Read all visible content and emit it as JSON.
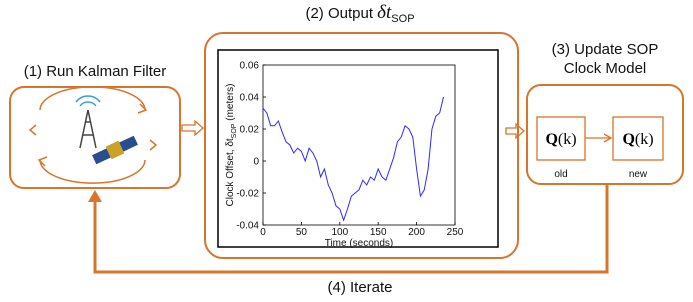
{
  "step1": {
    "label": "(1) Run Kalman Filter"
  },
  "step2": {
    "label": "(2) Output",
    "symbol": "δt",
    "subscript": "SOP"
  },
  "step3": {
    "label_lines": [
      "(3) Update SOP",
      "Clock Model"
    ],
    "boxes": [
      {
        "symbol": "Q",
        "argument": "(k)",
        "caption": "old"
      },
      {
        "symbol": "Q",
        "argument": "(k)",
        "caption": "new"
      }
    ]
  },
  "step4": {
    "label": "(4) Iterate"
  },
  "chart_data": {
    "type": "line",
    "xlabel": "Time (seconds)",
    "ylabel": "Clock Offset, δt",
    "ylabel_subscript": "SOP",
    "ylabel_unit": "(meters)",
    "x": [
      0,
      5,
      10,
      15,
      20,
      25,
      30,
      35,
      40,
      45,
      50,
      55,
      60,
      65,
      70,
      75,
      80,
      85,
      90,
      95,
      100,
      105,
      110,
      115,
      120,
      125,
      130,
      135,
      140,
      145,
      150,
      155,
      160,
      165,
      170,
      175,
      180,
      185,
      190,
      195,
      200,
      205,
      210,
      215,
      220,
      225,
      230,
      235
    ],
    "series": [
      {
        "color": "#2b2bff",
        "values": [
          0.033,
          0.03,
          0.022,
          0.022,
          0.025,
          0.018,
          0.012,
          0.01,
          0.005,
          0.008,
          0.006,
          0.0,
          0.008,
          0.005,
          0.0,
          -0.01,
          -0.005,
          -0.015,
          -0.02,
          -0.028,
          -0.03,
          -0.037,
          -0.03,
          -0.022,
          -0.02,
          -0.018,
          -0.012,
          -0.015,
          -0.01,
          -0.012,
          -0.005,
          -0.01,
          -0.012,
          -0.005,
          0.002,
          0.012,
          0.015,
          0.022,
          0.02,
          0.015,
          -0.005,
          -0.022,
          -0.018,
          -0.005,
          0.02,
          0.028,
          0.03,
          0.04
        ]
      }
    ],
    "xlim": [
      0,
      250
    ],
    "xticks": [
      0,
      50,
      100,
      150,
      200,
      250
    ],
    "ylim": [
      -0.04,
      0.06
    ],
    "yticks": [
      -0.04,
      -0.02,
      0,
      0.02,
      0.04,
      0.06
    ],
    "grid": false
  }
}
